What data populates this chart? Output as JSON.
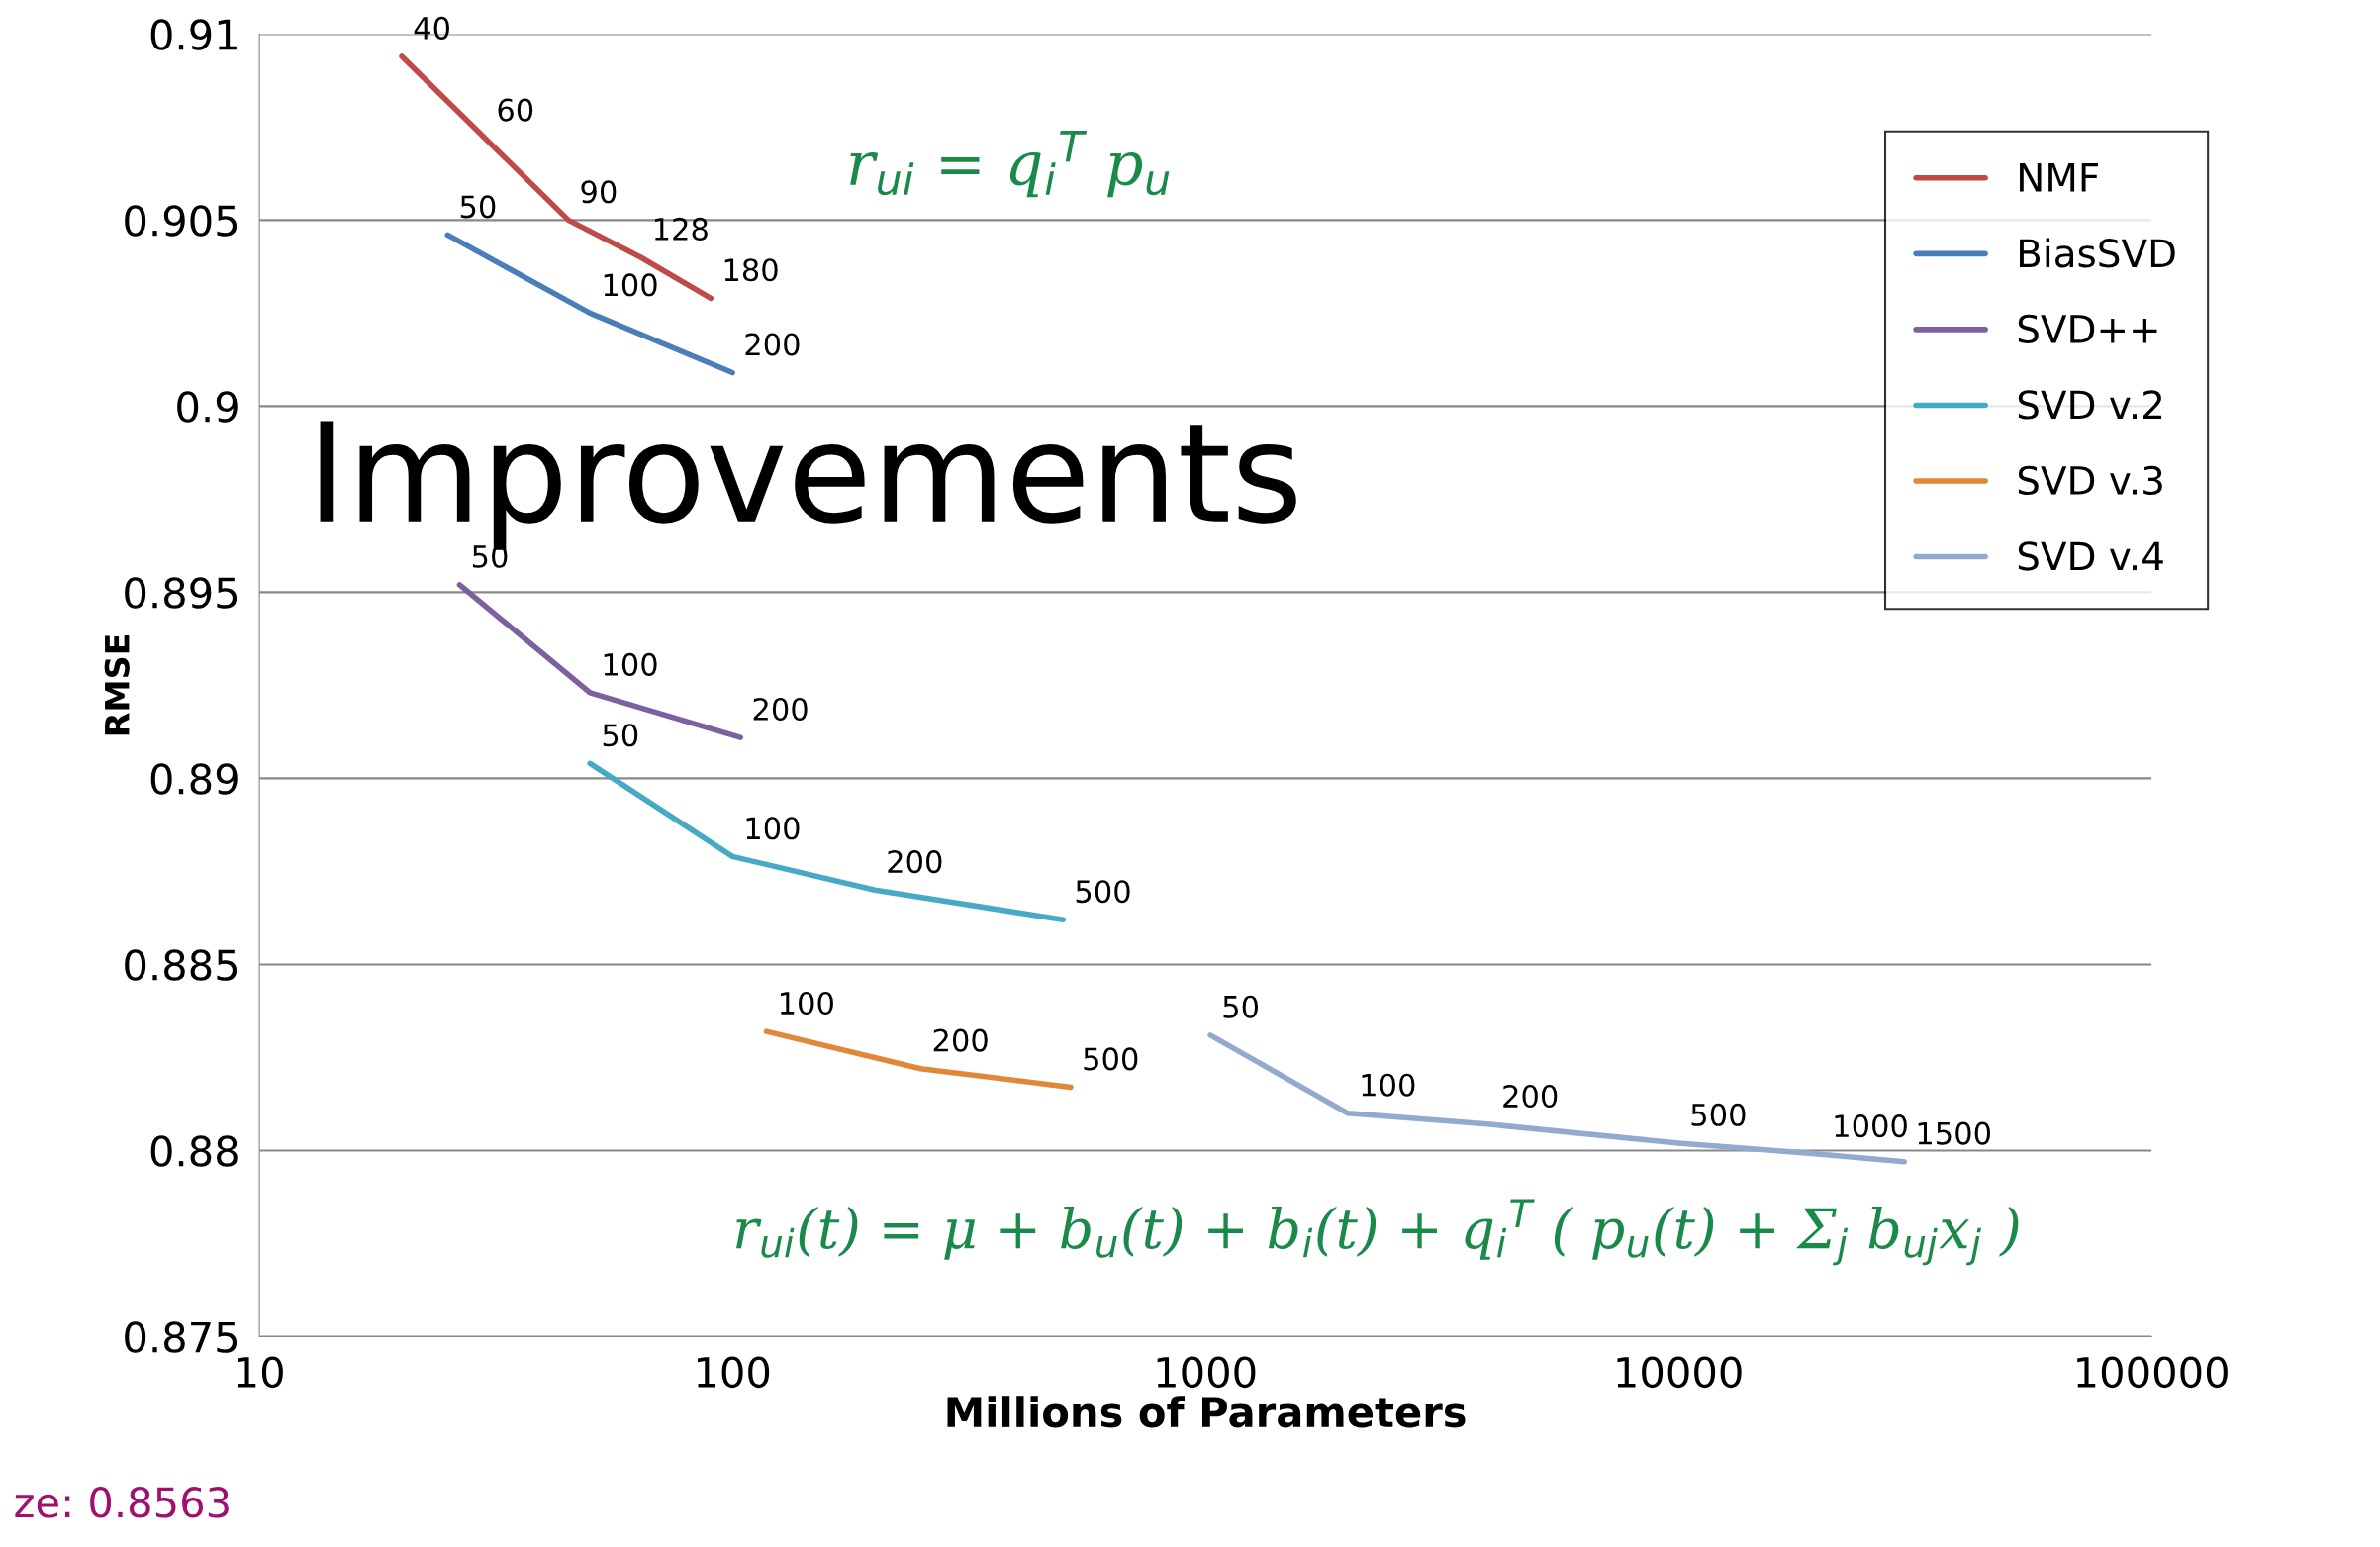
{
  "chart_data": {
    "type": "line",
    "xlabel": "Millions of Parameters",
    "ylabel": "RMSE",
    "log": "x",
    "xlim": [
      10,
      100000
    ],
    "xticks": [
      10,
      100,
      1000,
      10000,
      100000
    ],
    "ylim": [
      0.875,
      0.91
    ],
    "yticks": [
      0.875,
      0.88,
      0.885,
      0.89,
      0.895,
      0.9,
      0.905,
      0.91
    ],
    "grid": "y",
    "legend": "top right",
    "marker": "none",
    "line_style": "solid",
    "series": [
      {
        "name": "NMF",
        "color": "#be4b48",
        "x": [
          20,
          30,
          45,
          64,
          90
        ],
        "values": [
          0.9094,
          0.9072,
          0.905,
          0.904,
          0.9029
        ]
      },
      {
        "name": "BiasSVD",
        "color": "#4a7ebb",
        "x": [
          25,
          50,
          100
        ],
        "values": [
          0.9046,
          0.9025,
          0.9009
        ]
      },
      {
        "name": "SVD++",
        "color": "#7d60a0",
        "x": [
          26.5,
          50,
          104
        ],
        "values": [
          0.8952,
          0.8923,
          0.8911
        ]
      },
      {
        "name": "SVD v.2",
        "color": "#46aac5",
        "x": [
          50,
          100,
          200,
          500
        ],
        "values": [
          0.8904,
          0.8879,
          0.887,
          0.8862
        ]
      },
      {
        "name": "SVD v.3",
        "color": "#e0883a",
        "x": [
          118,
          250,
          519
        ],
        "values": [
          0.8832,
          0.8822,
          0.8817
        ]
      },
      {
        "name": "SVD v.4",
        "color": "#93a9cf",
        "x": [
          1024,
          2000,
          4000,
          10000,
          20000,
          30000
        ],
        "values": [
          0.8831,
          0.881,
          0.8807,
          0.8802,
          0.8799,
          0.8797
        ]
      }
    ],
    "annotations": [
      {
        "text": "40",
        "x": 20,
        "y": 0.9094
      },
      {
        "text": "60",
        "x": 30,
        "y": 0.9072
      },
      {
        "text": "90",
        "x": 45,
        "y": 0.905
      },
      {
        "text": "128",
        "x": 64,
        "y": 0.904
      },
      {
        "text": "180",
        "x": 90,
        "y": 0.9029
      },
      {
        "text": "50",
        "x": 25,
        "y": 0.9046
      },
      {
        "text": "100",
        "x": 50,
        "y": 0.9025
      },
      {
        "text": "200",
        "x": 100,
        "y": 0.9009
      },
      {
        "text": "50",
        "x": 26.5,
        "y": 0.8952
      },
      {
        "text": "100",
        "x": 50,
        "y": 0.8923
      },
      {
        "text": "200",
        "x": 104,
        "y": 0.8911
      },
      {
        "text": "50",
        "x": 50,
        "y": 0.8904
      },
      {
        "text": "100",
        "x": 100,
        "y": 0.8879
      },
      {
        "text": "200",
        "x": 200,
        "y": 0.887
      },
      {
        "text": "500",
        "x": 500,
        "y": 0.8862
      },
      {
        "text": "100",
        "x": 118,
        "y": 0.8832
      },
      {
        "text": "200",
        "x": 250,
        "y": 0.8822
      },
      {
        "text": "500",
        "x": 519,
        "y": 0.8817
      },
      {
        "text": "50",
        "x": 1024,
        "y": 0.8831
      },
      {
        "text": "100",
        "x": 2000,
        "y": 0.881
      },
      {
        "text": "200",
        "x": 4000,
        "y": 0.8807
      },
      {
        "text": "500",
        "x": 10000,
        "y": 0.8802
      },
      {
        "text": "1000",
        "x": 20000,
        "y": 0.8799
      },
      {
        "text": "1500",
        "x": 30000,
        "y": 0.8797
      },
      "r$_{ui}$ = q$_{i}$$^{T}$ p$_{u}$",
      "Improvements",
      "r$_{ui}$(t) = μ + b$_{u}$(t) + b$_{i}$(t) + q$_{i}$$^{T}$ ( p$_{u}$(t) + Σ$_{j}$ b$_{uj}$x$_{j}$ )",
      "ze: 0.8563"
    ]
  }
}
